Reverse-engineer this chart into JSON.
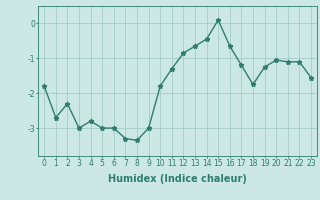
{
  "x": [
    0,
    1,
    2,
    3,
    4,
    5,
    6,
    7,
    8,
    9,
    10,
    11,
    12,
    13,
    14,
    15,
    16,
    17,
    18,
    19,
    20,
    21,
    22,
    23
  ],
  "y": [
    -1.8,
    -2.7,
    -2.3,
    -3.0,
    -2.8,
    -3.0,
    -3.0,
    -3.3,
    -3.35,
    -3.0,
    -1.8,
    -1.3,
    -0.85,
    -0.65,
    -0.45,
    0.1,
    -0.65,
    -1.2,
    -1.75,
    -1.25,
    -1.05,
    -1.1,
    -1.1,
    -1.55
  ],
  "line_color": "#2e7d6e",
  "marker": "*",
  "marker_size": 3.5,
  "background_color": "#cce8e4",
  "grid_color": "#aacfca",
  "xlabel": "Humidex (Indice chaleur)",
  "xlabel_fontsize": 7,
  "xlim": [
    -0.5,
    23.5
  ],
  "ylim": [
    -3.8,
    0.5
  ],
  "yticks": [
    0,
    -1,
    -2,
    -3
  ],
  "xticks": [
    0,
    1,
    2,
    3,
    4,
    5,
    6,
    7,
    8,
    9,
    10,
    11,
    12,
    13,
    14,
    15,
    16,
    17,
    18,
    19,
    20,
    21,
    22,
    23
  ],
  "tick_fontsize": 5.5,
  "line_width": 1.0
}
